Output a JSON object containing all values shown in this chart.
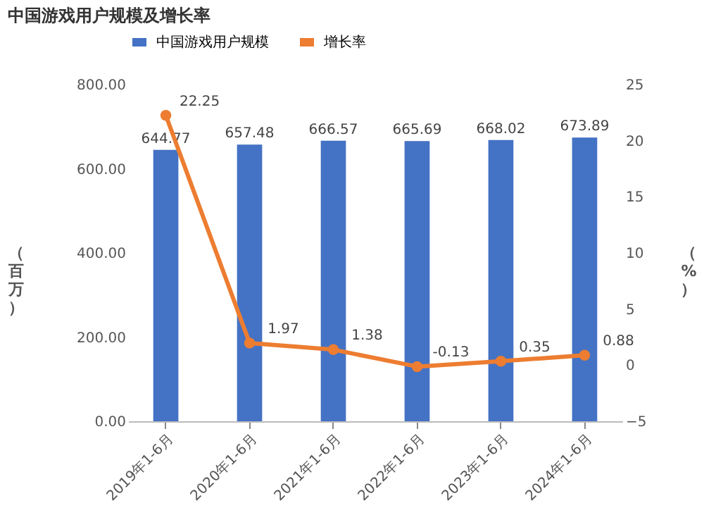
{
  "chart_data": {
    "type": "bar",
    "title": "中国游戏用户规模及增长率",
    "categories": [
      "2019年1-6月",
      "2020年1-6月",
      "2021年1-6月",
      "2022年1-6月",
      "2023年1-6月",
      "2024年1-6月"
    ],
    "series": [
      {
        "name": "中国游戏用户规模",
        "type": "bar",
        "color": "#4472c4",
        "values": [
          644.77,
          657.48,
          666.57,
          665.69,
          668.02,
          673.89
        ]
      },
      {
        "name": "增长率",
        "type": "line",
        "axis": "y2",
        "color": "#ed7d31",
        "marker": "circle",
        "values": [
          22.25,
          1.97,
          1.38,
          -0.13,
          0.35,
          0.88
        ]
      }
    ],
    "ylabel": "（百万）",
    "y2label": "（%）",
    "ylim": [
      0,
      800
    ],
    "yticks": [
      {
        "value": 0,
        "label": "0.00"
      },
      {
        "value": 200,
        "label": "200.00"
      },
      {
        "value": 400,
        "label": "400.00"
      },
      {
        "value": 600,
        "label": "600.00"
      },
      {
        "value": 800,
        "label": "800.00"
      }
    ],
    "y2lim": [
      -5,
      25
    ],
    "y2ticks": [
      -5,
      0,
      5,
      10,
      15,
      20,
      25
    ],
    "data_labels": true,
    "legend": "top",
    "grid": false
  }
}
